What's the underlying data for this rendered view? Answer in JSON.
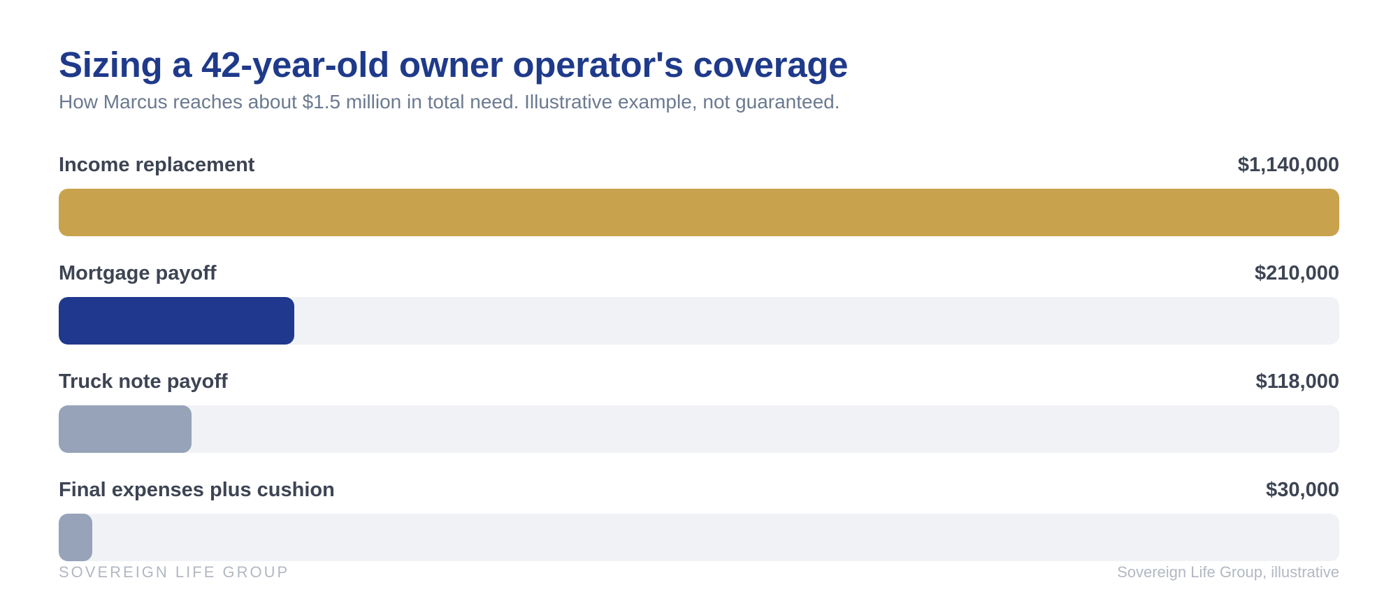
{
  "chart_data": {
    "type": "bar",
    "orientation": "horizontal",
    "title": "Sizing a 42-year-old owner operator's coverage",
    "subtitle": "How Marcus reaches about $1.5 million in total need. Illustrative example, not guaranteed.",
    "categories": [
      "Income replacement",
      "Mortgage payoff",
      "Truck note payoff",
      "Final expenses plus cushion"
    ],
    "values": [
      1140000,
      210000,
      118000,
      30000
    ],
    "value_labels": [
      "$1,140,000",
      "$210,000",
      "$118,000",
      "$30,000"
    ],
    "xlim": [
      0,
      1140000
    ],
    "colors": [
      "#c9a24d",
      "#20388d",
      "#96a3b8",
      "#96a3b8"
    ],
    "track_color": "#f0f2f6",
    "grid": false,
    "legend": "none"
  },
  "footer": {
    "brand": "SOVEREIGN LIFE GROUP",
    "source": "Sovereign Life Group, illustrative"
  }
}
